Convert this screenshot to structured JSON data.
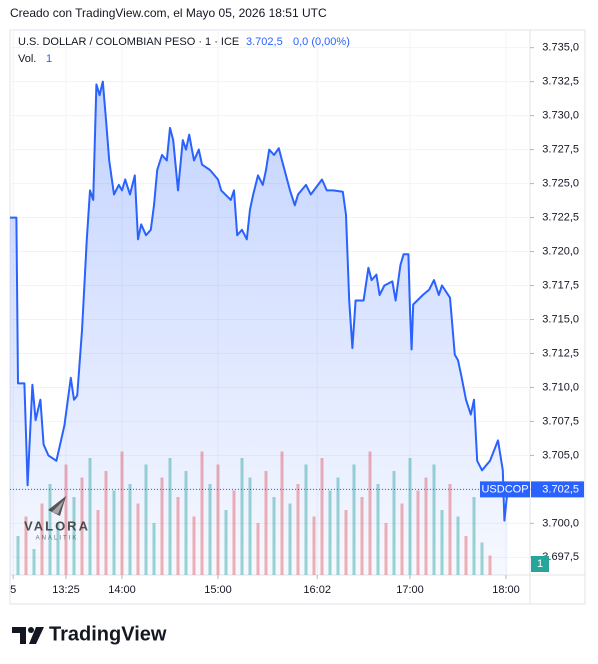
{
  "created_note": "Creado con TradingView.com, el Mayo 05, 2026 18:51 UTC",
  "chart_data": {
    "type": "area",
    "title": "U.S. DOLLAR / COLOMBIAN PESO · 1 · ICE",
    "last_price": {
      "value": 3702.5,
      "label": "3.702,5"
    },
    "change_label": "0,0 (0,00%)",
    "series": [
      {
        "name": "USDCOP",
        "color": "#2962ff",
        "x": [
          770,
          774,
          775,
          779,
          781,
          784,
          786,
          789,
          791,
          794,
          799,
          804,
          808,
          810,
          812,
          815,
          818,
          820,
          822,
          824,
          826,
          828,
          830,
          832,
          835,
          838,
          840,
          842,
          845,
          848,
          850,
          852,
          855,
          858,
          860,
          862,
          865,
          868,
          870,
          872,
          875,
          878,
          880,
          882,
          885,
          888,
          890,
          895,
          900,
          902,
          908,
          910,
          912,
          915,
          918,
          920,
          922,
          925,
          928,
          930,
          932,
          935,
          938,
          940,
          945,
          948,
          950,
          955,
          958,
          965,
          968,
          972,
          978,
          980,
          982,
          984,
          986,
          991,
          994,
          996,
          999,
          1001,
          1004,
          1009,
          1011,
          1014,
          1016,
          1019,
          1020,
          1021,
          1022,
          1028,
          1032,
          1035,
          1038,
          1040,
          1045,
          1048,
          1050,
          1052,
          1055,
          1058,
          1060,
          1062,
          1065,
          1070,
          1075,
          1078,
          1079,
          1081
        ],
        "values": [
          3722.5,
          3722.5,
          3710.3,
          3710.3,
          3702.8,
          3710.2,
          3707.6,
          3709.1,
          3705.8,
          3705.0,
          3704.6,
          3707.2,
          3710.7,
          3709.1,
          3709.4,
          3714.2,
          3720.9,
          3724.5,
          3723.8,
          3732.3,
          3731.5,
          3732.5,
          3729.7,
          3726.7,
          3724.2,
          3724.9,
          3724.5,
          3725.3,
          3724.2,
          3725.6,
          3720.9,
          3722.0,
          3721.2,
          3721.6,
          3723.4,
          3726.0,
          3727.1,
          3726.7,
          3729.1,
          3728.2,
          3724.5,
          3728.2,
          3727.5,
          3728.6,
          3726.7,
          3727.5,
          3726.4,
          3726.0,
          3725.3,
          3724.5,
          3723.8,
          3724.5,
          3721.2,
          3721.6,
          3720.9,
          3723.1,
          3724.2,
          3725.6,
          3724.9,
          3726.0,
          3727.5,
          3727.1,
          3727.6,
          3726.7,
          3724.5,
          3723.4,
          3724.2,
          3724.9,
          3724.2,
          3725.3,
          3724.5,
          3724.5,
          3724.4,
          3722.7,
          3716.4,
          3712.9,
          3716.4,
          3716.4,
          3718.8,
          3717.9,
          3718.3,
          3716.8,
          3717.5,
          3717.8,
          3716.4,
          3719.0,
          3719.8,
          3719.8,
          3715.7,
          3712.8,
          3716.1,
          3716.8,
          3717.2,
          3717.9,
          3716.8,
          3717.5,
          3716.6,
          3712.4,
          3712.0,
          3710.9,
          3709.1,
          3708.0,
          3709.1,
          3704.6,
          3703.9,
          3704.6,
          3706.1,
          3703.9,
          3700.2,
          3702.5
        ]
      }
    ],
    "volume": {
      "label": "Vol.",
      "last": 1,
      "up_color": "#26a69a",
      "down_color": "#ef5350",
      "x": [
        775,
        780,
        785,
        790,
        795,
        800,
        805,
        810,
        815,
        820,
        825,
        830,
        835,
        840,
        845,
        850,
        855,
        860,
        865,
        870,
        875,
        880,
        885,
        890,
        895,
        900,
        905,
        910,
        915,
        920,
        925,
        930,
        935,
        940,
        945,
        950,
        955,
        960,
        965,
        970,
        975,
        980,
        985,
        990,
        995,
        1000,
        1005,
        1010,
        1015,
        1020,
        1025,
        1030,
        1035,
        1040,
        1045,
        1050,
        1055,
        1060,
        1065,
        1070
      ],
      "values": [
        30,
        45,
        20,
        55,
        70,
        40,
        85,
        60,
        75,
        90,
        50,
        80,
        65,
        95,
        70,
        55,
        85,
        40,
        75,
        90,
        60,
        80,
        45,
        95,
        70,
        85,
        50,
        65,
        90,
        75,
        40,
        80,
        60,
        95,
        55,
        70,
        85,
        45,
        90,
        65,
        75,
        50,
        85,
        60,
        95,
        70,
        40,
        80,
        55,
        90,
        65,
        75,
        85,
        50,
        70,
        45,
        30,
        60,
        25,
        15
      ],
      "rising": [
        true,
        false,
        true,
        false,
        true,
        true,
        false,
        true,
        false,
        true,
        false,
        false,
        true,
        false,
        true,
        false,
        true,
        true,
        false,
        true,
        false,
        true,
        false,
        false,
        true,
        false,
        true,
        false,
        true,
        true,
        false,
        false,
        true,
        false,
        true,
        false,
        true,
        false,
        false,
        true,
        true,
        false,
        true,
        false,
        false,
        true,
        false,
        true,
        false,
        true,
        false,
        false,
        true,
        true,
        false,
        true,
        false,
        true,
        true,
        false
      ]
    },
    "xlim": [
      770,
      1095
    ],
    "ylim": [
      3696.2,
      3736.3
    ],
    "xticks": [
      {
        "value": 772,
        "label": "5"
      },
      {
        "value": 805,
        "label": "13:25"
      },
      {
        "value": 840,
        "label": "14:00"
      },
      {
        "value": 900,
        "label": "15:00"
      },
      {
        "value": 962,
        "label": "16:02"
      },
      {
        "value": 1020,
        "label": "17:00"
      },
      {
        "value": 1080,
        "label": "18:00"
      }
    ],
    "yticks": [
      {
        "value": 3697.5,
        "label": "3.697,5"
      },
      {
        "value": 3700,
        "label": "3.700,0"
      },
      {
        "value": 3702.5,
        "label": "3.702,5"
      },
      {
        "value": 3705,
        "label": "3.705,0"
      },
      {
        "value": 3707.5,
        "label": "3.707,5"
      },
      {
        "value": 3710,
        "label": "3.710,0"
      },
      {
        "value": 3712.5,
        "label": "3.712,5"
      },
      {
        "value": 3715,
        "label": "3.715,0"
      },
      {
        "value": 3717.5,
        "label": "3.717,5"
      },
      {
        "value": 3720,
        "label": "3.720,0"
      },
      {
        "value": 3722.5,
        "label": "3.722,5"
      },
      {
        "value": 3725,
        "label": "3.725,0"
      },
      {
        "value": 3727.5,
        "label": "3.727,5"
      },
      {
        "value": 3730,
        "label": "3.730,0"
      },
      {
        "value": 3732.5,
        "label": "3.732,5"
      },
      {
        "value": 3735,
        "label": "3.735,0"
      }
    ],
    "grid": true
  },
  "watermark": {
    "title": "VALORA",
    "subtitle": "ANALITIK"
  },
  "brand": "TradingView"
}
